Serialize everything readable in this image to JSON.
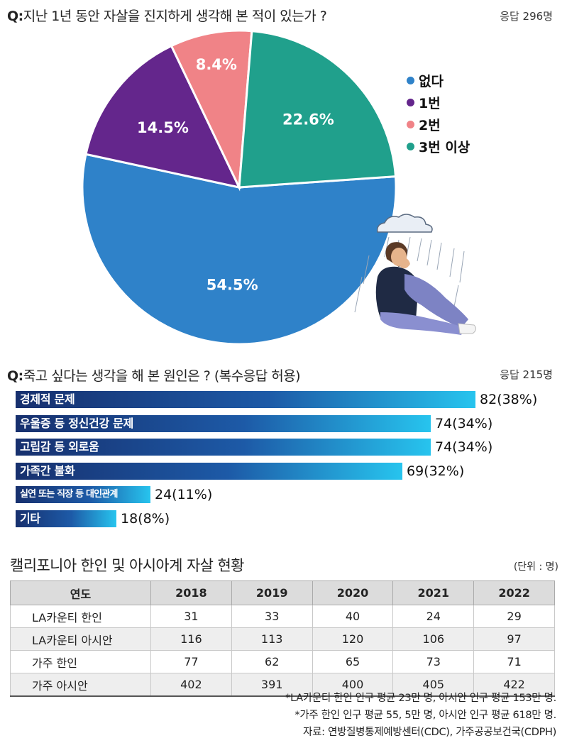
{
  "chart_data": [
    {
      "type": "pie",
      "title": "지난 1년 동안 자살을 진지하게 생각해 본 적이 있는가 ?",
      "question_prefix": "Q:",
      "responses": "응답 296명",
      "slices": [
        {
          "name": "없다",
          "value": 54.5,
          "label": "54.5%",
          "color": "#2f82c9"
        },
        {
          "name": "1번",
          "value": 14.5,
          "label": "14.5%",
          "color": "#64268c"
        },
        {
          "name": "2번",
          "value": 8.4,
          "label": "8.4%",
          "color": "#f08387"
        },
        {
          "name": "3번 이상",
          "value": 22.6,
          "label": "22.6%",
          "color": "#20a08c"
        }
      ]
    },
    {
      "type": "bar",
      "orientation": "horizontal",
      "title": "죽고 싶다는 생각을 해 본 원인은 ? (복수응답 허용)",
      "question_prefix": "Q:",
      "responses": "응답 215명",
      "categories": [
        "경제적 문제",
        "우울증 등 정신건강 문제",
        "고립감 등 외로움",
        "가족간 불화",
        "실연 또는 직장 등 대인관계",
        "기타"
      ],
      "values": [
        82,
        74,
        74,
        69,
        24,
        18
      ],
      "value_labels": [
        "82(38%)",
        "74(34%)",
        "74(34%)",
        "69(32%)",
        "24(11%)",
        "18(8%)"
      ],
      "xlim": [
        0,
        82
      ]
    },
    {
      "type": "table",
      "title": "캘리포니아 한인 및 아시아계 자살 현황",
      "unit": "(단위 : 명)",
      "header": [
        "연도",
        "2018",
        "2019",
        "2020",
        "2021",
        "2022"
      ],
      "rows": [
        [
          "LA카운티 한인",
          "31",
          "33",
          "40",
          "24",
          "29"
        ],
        [
          "LA카운티 아시안",
          "116",
          "113",
          "120",
          "106",
          "97"
        ],
        [
          "가주 한인",
          "77",
          "62",
          "65",
          "73",
          "71"
        ],
        [
          "가주 아시안",
          "402",
          "391",
          "400",
          "405",
          "422"
        ]
      ],
      "notes": [
        "*LA카운티 한인 인구 평균 23만 명, 아시안 인구 평균 153만 명.",
        "*가주 한인 인구 평균 55, 5만 명, 아시안 인구 평균 618만 명.",
        "자료: 연방질병통제예방센터(CDC), 가주공공보건국(CDPH)"
      ]
    }
  ]
}
